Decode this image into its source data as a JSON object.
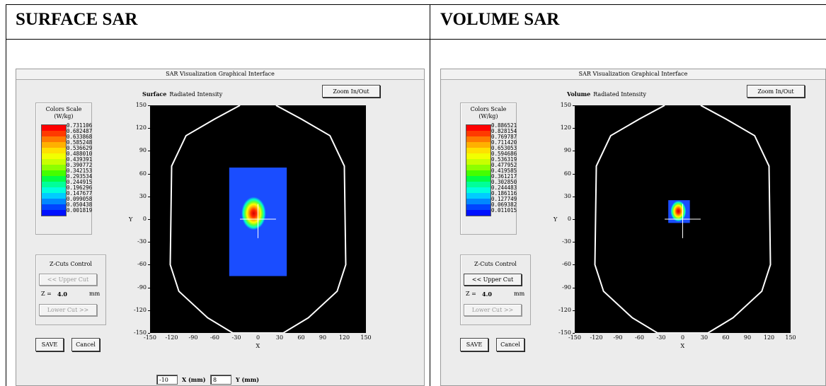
{
  "headers": {
    "left": "SURFACE SAR",
    "right": "VOLUME SAR"
  },
  "windows": [
    {
      "id": "surface",
      "title": "SAR Visualization Graphical Interface",
      "heading_bold": "Surface",
      "heading_text": "Radiated Intensity",
      "zoom_label": "Zoom In/Out",
      "scale_title": "Colors Scale",
      "scale_unit": "(W/kg)",
      "scale_values": [
        "0.731106",
        "0.682487",
        "0.633868",
        "0.585248",
        "0.536629",
        "0.488010",
        "0.439391",
        "0.390772",
        "0.342153",
        "0.293534",
        "0.244915",
        "0.196296",
        "0.147677",
        "0.099058",
        "0.050438",
        "0.001819"
      ],
      "zcut_title": "Z-Cuts Control",
      "upper_cut": "<< Upper Cut",
      "upper_enabled": false,
      "z_label": "Z =",
      "z_value": "4.0",
      "z_unit": "mm",
      "lower_cut": "Lower Cut >>",
      "lower_enabled": false,
      "save": "SAVE",
      "cancel": "Cancel",
      "x_axis_label": "X",
      "y_axis_label": "Y",
      "x_field_value": "-10",
      "x_field_label": "X (mm)",
      "y_field_value": "8",
      "y_field_label": "Y (mm)",
      "show_coord_fields": true,
      "sar_region": {
        "x0": -40,
        "x1": 40,
        "y0": -75,
        "y1": 68
      },
      "hotspot": {
        "x": -6,
        "y": 10
      },
      "crosshair": {
        "x": 0,
        "y": 0
      }
    },
    {
      "id": "volume",
      "title": "SAR Visualization Graphical Interface",
      "heading_bold": "Volume",
      "heading_text": "Radiated Intensity",
      "zoom_label": "Zoom In/Out",
      "scale_title": "Colors Scale",
      "scale_unit": "(W/kg)",
      "scale_values": [
        "0.886521",
        "0.828154",
        "0.769787",
        "0.711420",
        "0.653053",
        "0.594686",
        "0.536319",
        "0.477952",
        "0.419585",
        "0.361217",
        "0.302850",
        "0.244483",
        "0.186116",
        "0.127749",
        "0.069382",
        "0.011015"
      ],
      "zcut_title": "Z-Cuts Control",
      "upper_cut": "<< Upper Cut",
      "upper_enabled": true,
      "z_label": "Z =",
      "z_value": "4.0",
      "z_unit": "mm",
      "lower_cut": "Lower Cut >>",
      "lower_enabled": false,
      "save": "SAVE",
      "cancel": "Cancel",
      "x_axis_label": "X",
      "y_axis_label": "Y",
      "show_coord_fields": false,
      "sar_region": {
        "x0": -20,
        "x1": 10,
        "y0": -5,
        "y1": 25
      },
      "hotspot": {
        "x": -6,
        "y": 12
      },
      "crosshair": {
        "x": 0,
        "y": 0
      }
    }
  ],
  "axis": {
    "x_ticks": [
      -150,
      -120,
      -90,
      -60,
      -30,
      0,
      30,
      60,
      90,
      120,
      150
    ],
    "y_ticks": [
      150,
      120,
      90,
      60,
      30,
      0,
      -30,
      -60,
      -90,
      -120,
      -150
    ],
    "range": [
      -150,
      150
    ]
  },
  "colors": {
    "scale": [
      "#ff0000",
      "#ff3a00",
      "#ff7a00",
      "#ffb000",
      "#ffe000",
      "#f2ff00",
      "#c8ff00",
      "#8cff00",
      "#44ff00",
      "#00ff44",
      "#00ff99",
      "#00ffdd",
      "#00ccff",
      "#0088ff",
      "#0044ff",
      "#0010ff"
    ],
    "field_blue": "#1a4dff"
  }
}
